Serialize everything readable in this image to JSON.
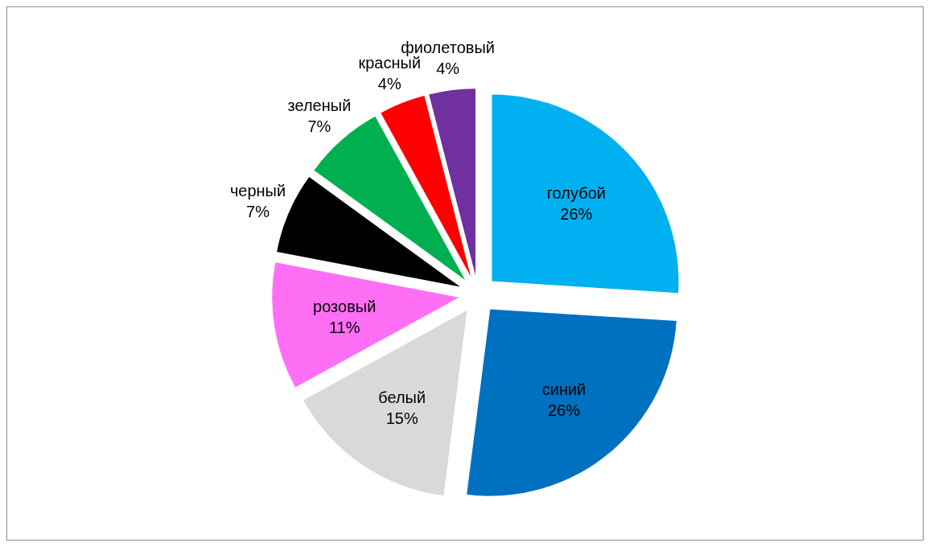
{
  "chart_data": {
    "type": "pie",
    "categories": [
      "голубой",
      "синий",
      "белый",
      "розовый",
      "черный",
      "зеленый",
      "красный",
      "фиолетовый"
    ],
    "values": [
      26,
      26,
      15,
      11,
      7,
      7,
      4,
      4
    ],
    "value_labels": [
      "26%",
      "26%",
      "15%",
      "11%",
      "7%",
      "7%",
      "4%",
      "4%"
    ],
    "colors": [
      "#00b0f0",
      "#0070c0",
      "#d9d9d9",
      "#ff6ff5",
      "#000000",
      "#00b050",
      "#ff0000",
      "#7030a0"
    ],
    "legend": false
  }
}
